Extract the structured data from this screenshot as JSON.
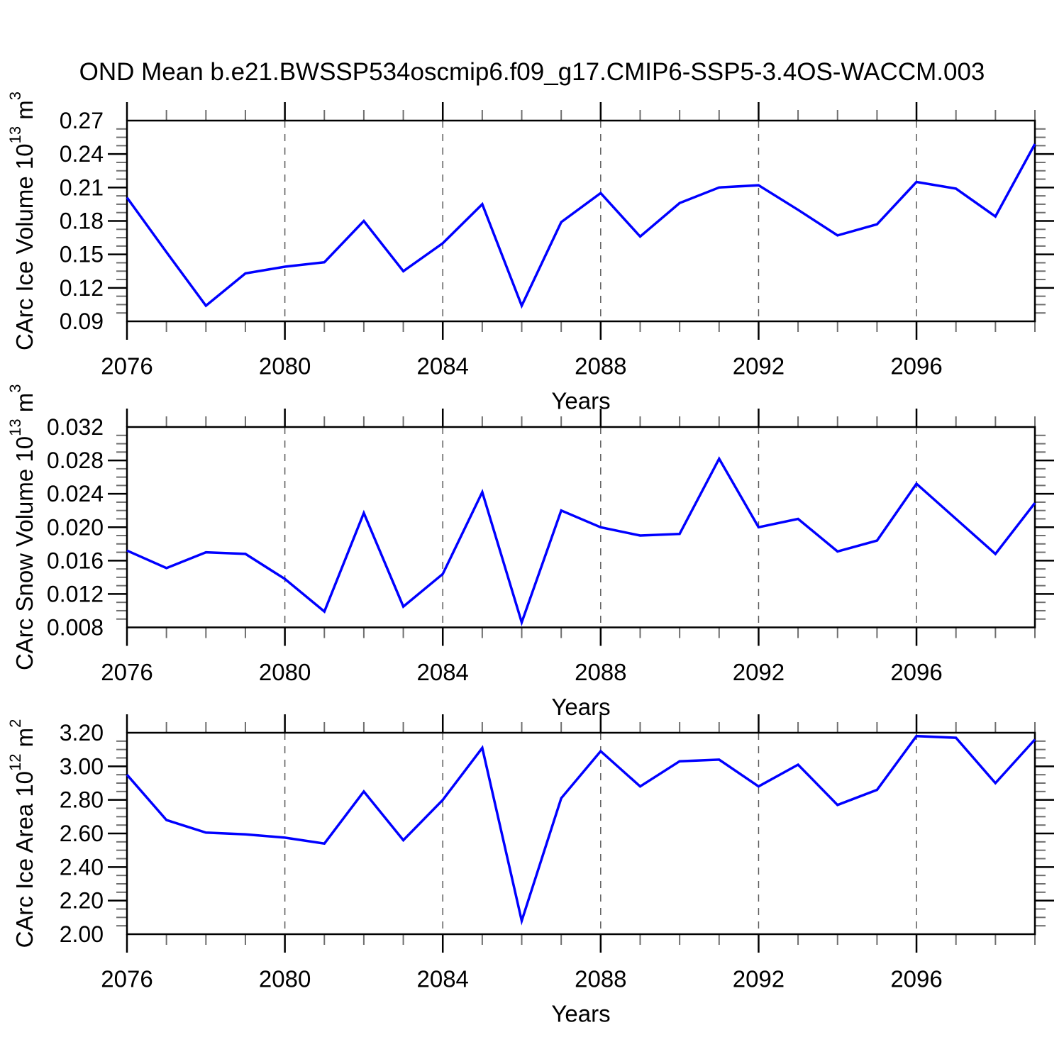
{
  "title": "OND Mean b.e21.BWSSP534oscmip6.f09_g17.CMIP6-SSP5-3.4OS-WACCM.003",
  "line_color": "#0000ff",
  "axis_color": "#000000",
  "minor_tick_color": "#6e6e6e",
  "gridline_color": "#5a5a5a",
  "x_axis": {
    "label": "Years",
    "years": [
      2076,
      2077,
      2078,
      2079,
      2080,
      2081,
      2082,
      2083,
      2084,
      2085,
      2086,
      2087,
      2088,
      2089,
      2090,
      2091,
      2092,
      2093,
      2094,
      2095,
      2096,
      2097,
      2098,
      2099
    ],
    "major_tick_years": [
      2076,
      2080,
      2084,
      2088,
      2092,
      2096
    ],
    "gridline_years": [
      2080,
      2084,
      2088,
      2092,
      2096
    ],
    "xlim": [
      2076,
      2099
    ]
  },
  "chart_data": [
    {
      "id": "ice-volume",
      "type": "line",
      "ylabel": "CArc Ice Volume 10^13 m^3",
      "ylabel_parts": [
        "CArc Ice Volume 10",
        "13",
        " m",
        "3"
      ],
      "xlabel": "Years",
      "ylim": [
        0.09,
        0.27
      ],
      "ytick_step": 0.03,
      "ytick_decimals": 2,
      "ytick_labels": [
        "0.09",
        "0.12",
        "0.15",
        "0.18",
        "0.21",
        "0.24",
        "0.27"
      ],
      "grid": "x-dashed",
      "legend": "none",
      "values": [
        0.201,
        0.152,
        0.104,
        0.133,
        0.139,
        0.143,
        0.18,
        0.135,
        0.16,
        0.195,
        0.104,
        0.179,
        0.205,
        0.166,
        0.196,
        0.21,
        0.212,
        0.19,
        0.167,
        0.177,
        0.215,
        0.209,
        0.184,
        0.249
      ]
    },
    {
      "id": "snow-volume",
      "type": "line",
      "ylabel": "CArc Snow Volume 10^13 m^3",
      "ylabel_parts": [
        "CArc Snow Volume 10",
        "13",
        " m",
        "3"
      ],
      "xlabel": "Years",
      "ylim": [
        0.008,
        0.032
      ],
      "ytick_step": 0.004,
      "ytick_decimals": 3,
      "ytick_labels": [
        "0.008",
        "0.012",
        "0.016",
        "0.020",
        "0.024",
        "0.028",
        "0.032"
      ],
      "grid": "x-dashed",
      "legend": "none",
      "values": [
        0.0172,
        0.0151,
        0.017,
        0.0168,
        0.0138,
        0.0099,
        0.0217,
        0.0105,
        0.0144,
        0.0242,
        0.0086,
        0.022,
        0.02,
        0.019,
        0.0192,
        0.0282,
        0.02,
        0.021,
        0.0171,
        0.0184,
        0.0252,
        0.021,
        0.0168,
        0.0229
      ]
    },
    {
      "id": "ice-area",
      "type": "line",
      "ylabel": "CArc Ice Area 10^12 m^2",
      "ylabel_parts": [
        "CArc Ice Area 10",
        "12",
        " m",
        "2"
      ],
      "xlabel": "Years",
      "ylim": [
        2.0,
        3.2
      ],
      "ytick_step": 0.2,
      "ytick_decimals": 2,
      "ytick_labels": [
        "2.00",
        "2.20",
        "2.40",
        "2.60",
        "2.80",
        "3.00",
        "3.20"
      ],
      "grid": "x-dashed",
      "legend": "none",
      "values": [
        2.95,
        2.68,
        2.605,
        2.595,
        2.575,
        2.54,
        2.85,
        2.56,
        2.8,
        3.11,
        2.08,
        2.81,
        3.09,
        2.88,
        3.03,
        3.04,
        2.88,
        3.01,
        2.77,
        2.86,
        3.18,
        3.17,
        2.9,
        3.16
      ]
    }
  ]
}
